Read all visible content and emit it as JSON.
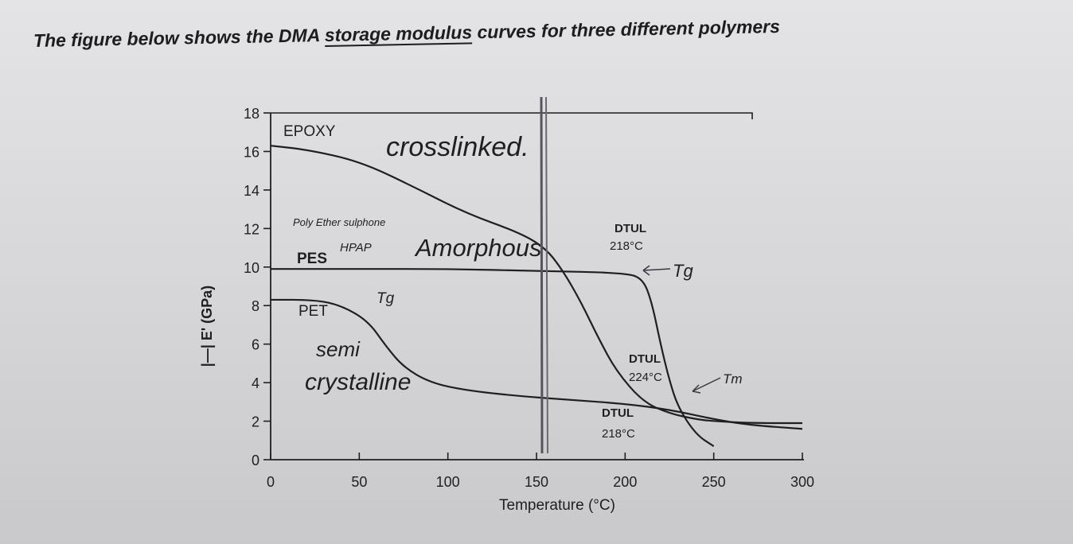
{
  "heading": {
    "pre": "The figure below shows the DMA ",
    "underlined": "storage modulus",
    "post": " curves for three different polymers"
  },
  "chart_data": {
    "type": "line",
    "xlabel": "Temperature  (°C)",
    "ylabel": "|—| E' (GPa)",
    "xlim": [
      0,
      300
    ],
    "ylim": [
      0,
      18
    ],
    "xticks": [
      0,
      50,
      100,
      150,
      200,
      250,
      300
    ],
    "xtick_labels": [
      "0",
      "50",
      "100",
      "150",
      "200",
      "250",
      "300"
    ],
    "yticks": [
      0,
      2,
      4,
      6,
      8,
      10,
      12,
      14,
      16,
      18
    ],
    "ytick_labels": [
      "0",
      "2",
      "4",
      "6",
      "8",
      "10",
      "12",
      "14",
      "16",
      "18"
    ],
    "grid": false,
    "series": [
      {
        "name": "EPOXY",
        "x": [
          0,
          20,
          50,
          80,
          110,
          140,
          155,
          165,
          175,
          185,
          195,
          210,
          225,
          240,
          250,
          270,
          300
        ],
        "y": [
          16.3,
          16.1,
          15.5,
          14.2,
          12.8,
          11.8,
          11.0,
          9.8,
          8.2,
          6.3,
          4.6,
          3.0,
          2.4,
          2.1,
          2.0,
          1.9,
          1.9
        ]
      },
      {
        "name": "PES",
        "x": [
          0,
          50,
          100,
          150,
          200,
          210,
          215,
          220,
          225,
          230,
          240,
          250
        ],
        "y": [
          9.9,
          9.9,
          9.9,
          9.8,
          9.7,
          9.4,
          8.2,
          6.0,
          4.1,
          2.7,
          1.3,
          0.7
        ]
      },
      {
        "name": "PET",
        "x": [
          0,
          25,
          40,
          55,
          65,
          75,
          90,
          110,
          140,
          170,
          200,
          225,
          250,
          270,
          300
        ],
        "y": [
          8.3,
          8.3,
          8.0,
          7.2,
          5.9,
          4.8,
          4.0,
          3.6,
          3.3,
          3.1,
          2.9,
          2.6,
          2.1,
          1.8,
          1.6
        ]
      }
    ],
    "annotations": [
      {
        "text": "EPOXY",
        "kind": "print"
      },
      {
        "text": "PES",
        "kind": "print"
      },
      {
        "text": "PET",
        "kind": "print"
      },
      {
        "text": "DTUL",
        "sub": "218°C",
        "kind": "print"
      },
      {
        "text": "DTUL",
        "sub": "224°C",
        "kind": "print"
      },
      {
        "text": "DTUL",
        "sub": "218°C",
        "kind": "print"
      }
    ],
    "handwritten": {
      "crosslinked": "crosslinked.",
      "poly": "Poly Ether sulphone",
      "hpap": "HPAP",
      "amorphous": "Amorphous",
      "tg1": "Tg",
      "tg2": "Tg",
      "semi": "semi",
      "crystalline": "crystalline",
      "tm": "Tm"
    }
  },
  "colors": {
    "ink": "#1f1f21",
    "pencil": "#3a3a44",
    "paper": "#d9d9db"
  }
}
